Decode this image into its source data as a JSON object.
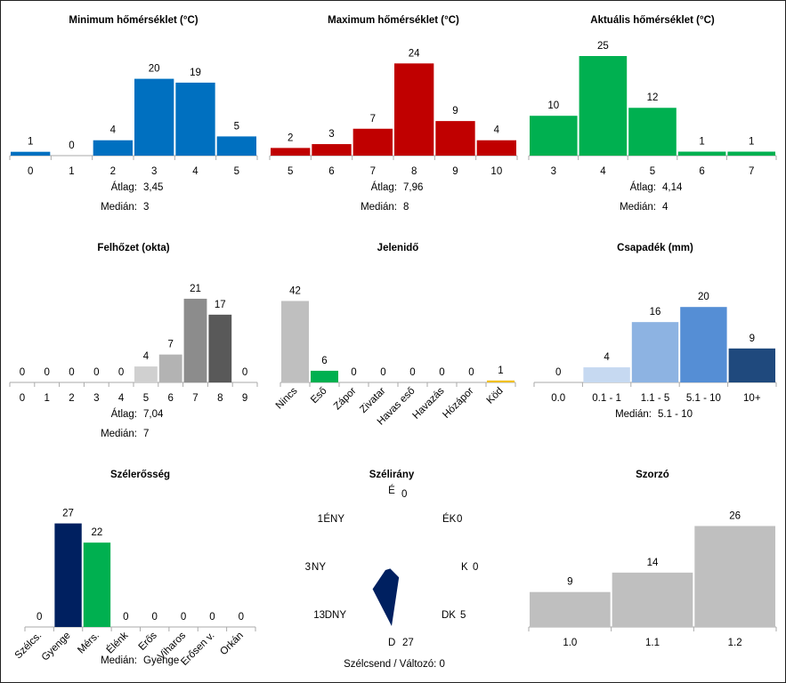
{
  "chart_data": [
    {
      "type": "bar",
      "title": "Minimum hőmérséklet (°C)",
      "categories": [
        "0",
        "1",
        "2",
        "3",
        "4",
        "5"
      ],
      "values": [
        1,
        0,
        4,
        20,
        19,
        5
      ],
      "colors": [
        "#0070c0"
      ],
      "ylim": [
        0,
        25
      ],
      "stats": [
        {
          "label": "Átlag:",
          "value": "3,45"
        },
        {
          "label": "Medián:",
          "value": "3"
        }
      ]
    },
    {
      "type": "bar",
      "title": "Maximum hőmérséklet (°C)",
      "categories": [
        "5",
        "6",
        "7",
        "8",
        "9",
        "10"
      ],
      "values": [
        2,
        3,
        7,
        24,
        9,
        4
      ],
      "colors": [
        "#c00000"
      ],
      "ylim": [
        0,
        25
      ],
      "stats": [
        {
          "label": "Átlag:",
          "value": "7,96"
        },
        {
          "label": "Medián:",
          "value": "8"
        }
      ]
    },
    {
      "type": "bar",
      "title": "Aktuális hőmérséklet (°C)",
      "categories": [
        "3",
        "4",
        "5",
        "6",
        "7"
      ],
      "values": [
        10,
        25,
        12,
        1,
        1
      ],
      "colors": [
        "#00b050"
      ],
      "ylim": [
        0,
        25
      ],
      "stats": [
        {
          "label": "Átlag:",
          "value": "4,14"
        },
        {
          "label": "Medián:",
          "value": "4"
        }
      ]
    },
    {
      "type": "bar",
      "title": "Felhőzet (okta)",
      "categories": [
        "0",
        "1",
        "2",
        "3",
        "4",
        "5",
        "6",
        "7",
        "8",
        "9"
      ],
      "values": [
        0,
        0,
        0,
        0,
        0,
        4,
        7,
        21,
        17,
        0
      ],
      "colors": [
        "#d9d9d9",
        "#d9d9d9",
        "#d9d9d9",
        "#d9d9d9",
        "#d9d9d9",
        "#d0d0d0",
        "#b3b3b3",
        "#8c8c8c",
        "#595959",
        "#404040"
      ],
      "ylim": [
        0,
        25
      ],
      "stats": [
        {
          "label": "Átlag:",
          "value": "7,04"
        },
        {
          "label": "Medián:",
          "value": "7"
        }
      ]
    },
    {
      "type": "bar",
      "title": "Jelenidő",
      "categories": [
        "Nincs",
        "Eső",
        "Zápor",
        "Zivatar",
        "Havas eső",
        "Havazás",
        "Hózápor",
        "Köd"
      ],
      "values": [
        42,
        6,
        0,
        0,
        0,
        0,
        0,
        1
      ],
      "colors": [
        "#bfbfbf",
        "#00b050",
        "#bfbfbf",
        "#bfbfbf",
        "#bfbfbf",
        "#bfbfbf",
        "#bfbfbf",
        "#f0c020"
      ],
      "ylim": [
        0,
        50
      ],
      "stats": []
    },
    {
      "type": "bar",
      "title": "Csapadék (mm)",
      "categories": [
        "0.0",
        "0.1 - 1",
        "1.1 - 5",
        "5.1 - 10",
        "10+"
      ],
      "values": [
        0,
        4,
        16,
        20,
        9
      ],
      "colors": [
        "#dce6f2",
        "#c6d9f1",
        "#8db3e2",
        "#558ed5",
        "#1f497d"
      ],
      "ylim": [
        0,
        25
      ],
      "stats": [
        {
          "label": "Medián:",
          "value": "5.1 - 10"
        }
      ]
    },
    {
      "type": "bar",
      "title": "Szélerősség",
      "categories": [
        "Szélcs.",
        "Gyenge",
        "Mérs.",
        "Élénk",
        "Erős",
        "Viharos",
        "Erősen v.",
        "Orkán"
      ],
      "values": [
        0,
        27,
        22,
        0,
        0,
        0,
        0,
        0
      ],
      "colors": [
        "#bfbfbf",
        "#002060",
        "#00b050",
        "#bfbfbf",
        "#bfbfbf",
        "#bfbfbf",
        "#bfbfbf",
        "#bfbfbf"
      ],
      "ylim": [
        0,
        32
      ],
      "stats": [
        {
          "label": "Medián:",
          "value": "Gyenge"
        }
      ]
    },
    {
      "type": "radar",
      "title": "Szélirány",
      "directions": [
        {
          "name": "É",
          "value": 0
        },
        {
          "name": "ÉK",
          "value": 0
        },
        {
          "name": "K",
          "value": 0
        },
        {
          "name": "DK",
          "value": 5
        },
        {
          "name": "D",
          "value": 27
        },
        {
          "name": "DNY",
          "value": 13
        },
        {
          "name": "NY",
          "value": 3
        },
        {
          "name": "ÉNY",
          "value": 1
        }
      ],
      "color": "#002060",
      "footer": "Szélcsend / Változó: 0"
    },
    {
      "type": "bar",
      "title": "Szorzó",
      "categories": [
        "1.0",
        "1.1",
        "1.2"
      ],
      "values": [
        9,
        14,
        26
      ],
      "colors": [
        "#bfbfbf"
      ],
      "ylim": [
        0,
        30
      ],
      "stats": []
    }
  ]
}
